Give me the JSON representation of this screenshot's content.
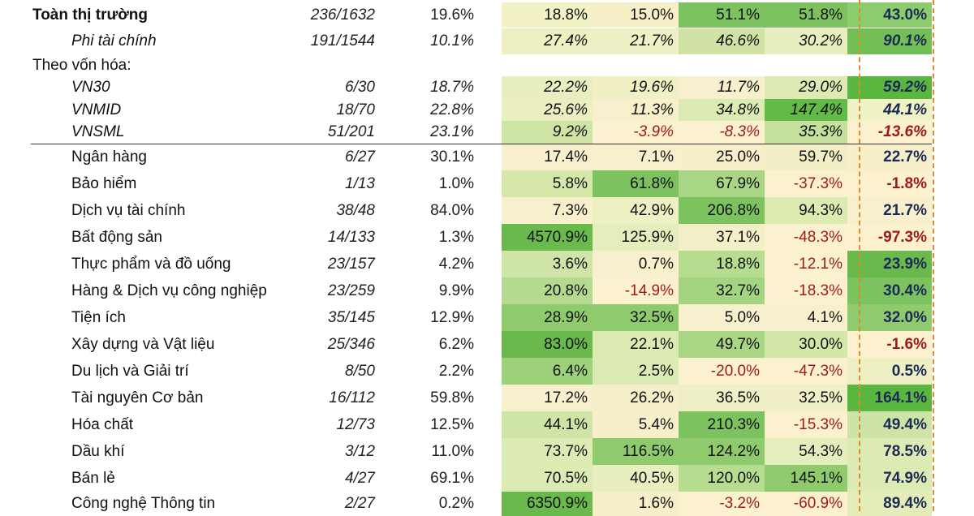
{
  "table": {
    "rows": [
      {
        "type": "data",
        "style": "l0",
        "name": "Toàn thị trường",
        "count": "236/1632",
        "share": "19.6%",
        "values": [
          "18.8%",
          "15.0%",
          "51.1%",
          "51.8%",
          "43.0%"
        ],
        "colors": [
          "#f2f2c4",
          "#f6efc8",
          "#7cc35f",
          "#7cc35f",
          "#8ccc6c"
        ]
      },
      {
        "type": "data",
        "style": "l1",
        "name": "Phi tài chính",
        "count": "191/1544",
        "share": "10.1%",
        "values": [
          "27.4%",
          "21.7%",
          "46.6%",
          "30.2%",
          "90.1%"
        ],
        "colors": [
          "#eef0c4",
          "#f0f0c6",
          "#cfe4a4",
          "#e8eebe",
          "#72c055"
        ]
      },
      {
        "type": "group",
        "name": "Theo vốn hóa:"
      },
      {
        "type": "data",
        "style": "l1",
        "name": "VN30",
        "count": "6/30",
        "share": "18.7%",
        "values": [
          "22.2%",
          "19.6%",
          "11.7%",
          "29.0%",
          "59.2%"
        ],
        "colors": [
          "#e8eec0",
          "#f0f0c4",
          "#f8f0cc",
          "#ddeab4",
          "#5bb640"
        ]
      },
      {
        "type": "data",
        "style": "l1",
        "name": "VNMID",
        "count": "18/70",
        "share": "22.8%",
        "values": [
          "25.6%",
          "11.3%",
          "34.8%",
          "147.4%",
          "44.1%"
        ],
        "colors": [
          "#eaeec0",
          "#f8f0cc",
          "#dcebb4",
          "#63ba48",
          "#eef2c4"
        ]
      },
      {
        "type": "data",
        "style": "l1",
        "name": "VNSML",
        "count": "51/201",
        "share": "23.1%",
        "values": [
          "9.2%",
          "-3.9%",
          "-8.3%",
          "35.3%",
          "-13.6%"
        ],
        "colors": [
          "#cfe5a6",
          "#fbf1cf",
          "#fbf1cf",
          "#c4e09c",
          "#fbf1cf"
        ]
      },
      {
        "type": "data",
        "style": "l2",
        "name": "Ngân hàng",
        "count": "6/27",
        "share": "30.1%",
        "values": [
          "17.4%",
          "7.1%",
          "25.0%",
          "59.7%",
          "22.7%"
        ],
        "colors": [
          "#f8f0cc",
          "#f8f0cc",
          "#f6efca",
          "#f2efc6",
          "#f6efca"
        ]
      },
      {
        "type": "data",
        "style": "l2",
        "name": "Bảo hiểm",
        "count": "1/13",
        "share": "1.0%",
        "values": [
          "5.8%",
          "61.8%",
          "67.9%",
          "-37.3%",
          "-1.8%"
        ],
        "colors": [
          "#d5e8aa",
          "#7cc35f",
          "#a8d684",
          "#fbf1cf",
          "#fbf1cf"
        ]
      },
      {
        "type": "data",
        "style": "l2",
        "name": "Dịch vụ tài chính",
        "count": "38/48",
        "share": "84.0%",
        "values": [
          "7.3%",
          "42.9%",
          "206.8%",
          "94.3%",
          "21.7%"
        ],
        "colors": [
          "#f8f0cc",
          "#eef0c4",
          "#7cc35f",
          "#ddebb2",
          "#f8f0cc"
        ]
      },
      {
        "type": "data",
        "style": "l2",
        "name": "Bất động sản",
        "count": "14/133",
        "share": "1.3%",
        "values": [
          "4570.9%",
          "125.9%",
          "37.1%",
          "-48.3%",
          "-97.3%"
        ],
        "colors": [
          "#6ab94c",
          "#e4edbb",
          "#f3efc8",
          "#fbf1cf",
          "#fbf1cf"
        ]
      },
      {
        "type": "data",
        "style": "l2",
        "name": "Thực phẩm và đồ uống",
        "count": "23/157",
        "share": "4.2%",
        "values": [
          "3.6%",
          "0.7%",
          "18.8%",
          "-12.1%",
          "23.9%"
        ],
        "colors": [
          "#cfe5a8",
          "#f8f0cc",
          "#b6dc90",
          "#fbf1cf",
          "#6ab94c"
        ]
      },
      {
        "type": "data",
        "style": "l2",
        "name": "Hàng & Dịch vụ công nghiệp",
        "count": "23/259",
        "share": "9.9%",
        "values": [
          "20.8%",
          "-14.9%",
          "32.7%",
          "-18.3%",
          "30.4%"
        ],
        "colors": [
          "#b3da8e",
          "#fbf1cf",
          "#a4d481",
          "#fbf1cf",
          "#7cc35f"
        ]
      },
      {
        "type": "data",
        "style": "l2",
        "name": "Tiện ích",
        "count": "35/145",
        "share": "12.9%",
        "values": [
          "28.9%",
          "32.5%",
          "5.0%",
          "4.1%",
          "32.0%"
        ],
        "colors": [
          "#8fcb6d",
          "#8fcb6d",
          "#f8f0cc",
          "#f8f0cc",
          "#8fcb6d"
        ]
      },
      {
        "type": "data",
        "style": "l2",
        "name": "Xây dựng và Vật liệu",
        "count": "25/346",
        "share": "6.2%",
        "values": [
          "83.0%",
          "22.1%",
          "49.7%",
          "30.0%",
          "-1.6%"
        ],
        "colors": [
          "#6ab94c",
          "#dceab4",
          "#a8d684",
          "#d2e7a8",
          "#fbf1cf"
        ]
      },
      {
        "type": "data",
        "style": "l2",
        "name": "Du lịch và Giải trí",
        "count": "8/50",
        "share": "2.2%",
        "values": [
          "6.4%",
          "2.5%",
          "-20.0%",
          "-47.3%",
          "0.5%"
        ],
        "colors": [
          "#9ed17b",
          "#dcebb4",
          "#fbf1cf",
          "#fbf1cf",
          "#eef0c4"
        ]
      },
      {
        "type": "data",
        "style": "l2",
        "name": "Tài nguyên Cơ bản",
        "count": "16/112",
        "share": "59.8%",
        "values": [
          "17.2%",
          "26.2%",
          "36.5%",
          "32.5%",
          "164.1%"
        ],
        "colors": [
          "#f8f0cc",
          "#f4efc8",
          "#eeefc4",
          "#f0efc6",
          "#5bb640"
        ]
      },
      {
        "type": "data",
        "style": "l2",
        "name": "Hóa chất",
        "count": "12/73",
        "share": "12.5%",
        "values": [
          "44.1%",
          "5.4%",
          "210.3%",
          "-15.3%",
          "49.4%"
        ],
        "colors": [
          "#cfe5a8",
          "#f6efca",
          "#7cc35f",
          "#fbf1cf",
          "#cde4a6"
        ]
      },
      {
        "type": "data",
        "style": "l2",
        "name": "Dầu khí",
        "count": "3/12",
        "share": "11.0%",
        "values": [
          "73.7%",
          "116.5%",
          "124.2%",
          "54.3%",
          "78.5%"
        ],
        "colors": [
          "#dceab4",
          "#8fcb6d",
          "#8fcb6d",
          "#e6edbc",
          "#dceab4"
        ]
      },
      {
        "type": "data",
        "style": "l2",
        "name": "Bán lẻ",
        "count": "4/27",
        "share": "69.1%",
        "values": [
          "70.5%",
          "40.5%",
          "120.0%",
          "145.1%",
          "74.9%"
        ],
        "colors": [
          "#dceab4",
          "#e8eebe",
          "#b6dc90",
          "#8fcb6d",
          "#dceab4"
        ]
      },
      {
        "type": "data",
        "style": "l2",
        "name": "Công nghệ Thông tin",
        "count": "2/27",
        "share": "0.2%",
        "values": [
          "6350.9%",
          "1.6%",
          "-3.2%",
          "-60.9%",
          "89.4%"
        ],
        "colors": [
          "#6ab94c",
          "#f6efca",
          "#fbf1cf",
          "#fbf1cf",
          "#e4edba"
        ]
      }
    ]
  }
}
